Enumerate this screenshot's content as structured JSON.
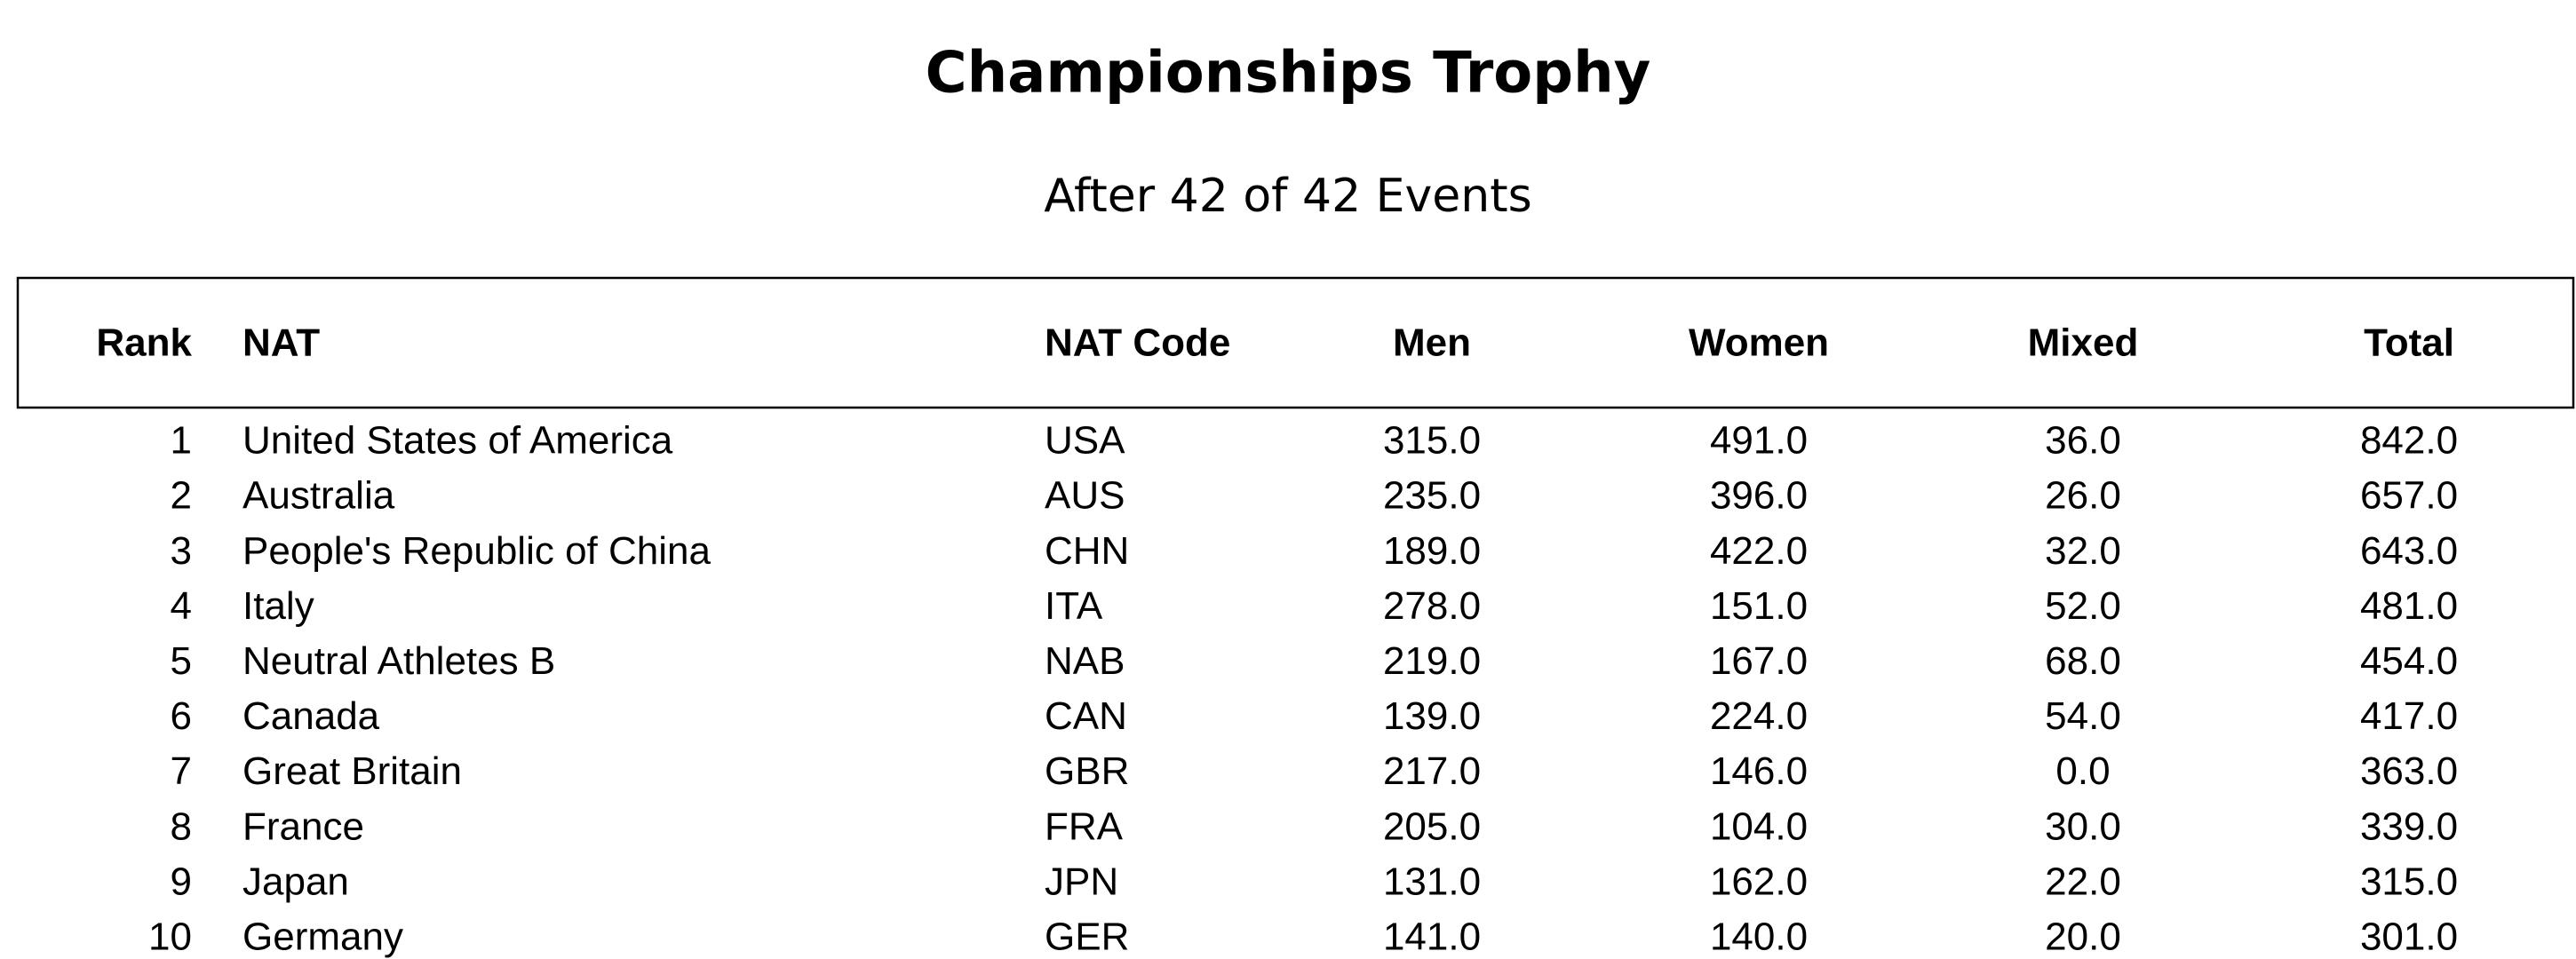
{
  "header": {
    "title": "Championships Trophy",
    "subtitle": "After 42 of 42 Events"
  },
  "table": {
    "columns": [
      "Rank",
      "NAT",
      "NAT Code",
      "Men",
      "Women",
      "Mixed",
      "Total"
    ],
    "rows": [
      [
        "1",
        "United States of America",
        "USA",
        "315.0",
        "491.0",
        "36.0",
        "842.0"
      ],
      [
        "2",
        "Australia",
        "AUS",
        "235.0",
        "396.0",
        "26.0",
        "657.0"
      ],
      [
        "3",
        "People's Republic of China",
        "CHN",
        "189.0",
        "422.0",
        "32.0",
        "643.0"
      ],
      [
        "4",
        "Italy",
        "ITA",
        "278.0",
        "151.0",
        "52.0",
        "481.0"
      ],
      [
        "5",
        "Neutral Athletes B",
        "NAB",
        "219.0",
        "167.0",
        "68.0",
        "454.0"
      ],
      [
        "6",
        "Canada",
        "CAN",
        "139.0",
        "224.0",
        "54.0",
        "417.0"
      ],
      [
        "7",
        "Great Britain",
        "GBR",
        "217.0",
        "146.0",
        "0.0",
        "363.0"
      ],
      [
        "8",
        "France",
        "FRA",
        "205.0",
        "104.0",
        "30.0",
        "339.0"
      ],
      [
        "9",
        "Japan",
        "JPN",
        "131.0",
        "162.0",
        "22.0",
        "315.0"
      ],
      [
        "10",
        "Germany",
        "GER",
        "141.0",
        "140.0",
        "20.0",
        "301.0"
      ]
    ]
  }
}
